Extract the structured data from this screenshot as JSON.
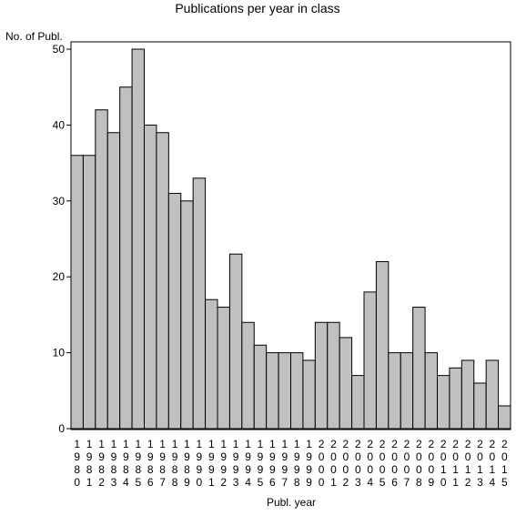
{
  "chart_data": {
    "type": "bar",
    "title": "Publications per year in class",
    "ylabel": "No. of Publ.",
    "xlabel": "Publ. year",
    "ylim": [
      0,
      50
    ],
    "yticks": [
      0,
      10,
      20,
      30,
      40,
      50
    ],
    "grid": false,
    "categories": [
      "1980",
      "1981",
      "1982",
      "1983",
      "1984",
      "1985",
      "1986",
      "1987",
      "1988",
      "1989",
      "1990",
      "1991",
      "1992",
      "1993",
      "1994",
      "1995",
      "1996",
      "1997",
      "1998",
      "1999",
      "2000",
      "2001",
      "2002",
      "2003",
      "2004",
      "2005",
      "2006",
      "2007",
      "2008",
      "2009",
      "2010",
      "2011",
      "2012",
      "2013",
      "2014",
      "2015"
    ],
    "values": [
      36,
      36,
      42,
      39,
      45,
      50,
      40,
      39,
      31,
      30,
      33,
      17,
      16,
      23,
      14,
      11,
      10,
      10,
      10,
      9,
      14,
      14,
      12,
      7,
      18,
      22,
      10,
      10,
      16,
      10,
      7,
      8,
      9,
      6,
      9,
      3
    ],
    "colors": {
      "bar_fill": "#c0c0c0",
      "bar_stroke": "#000000"
    }
  }
}
